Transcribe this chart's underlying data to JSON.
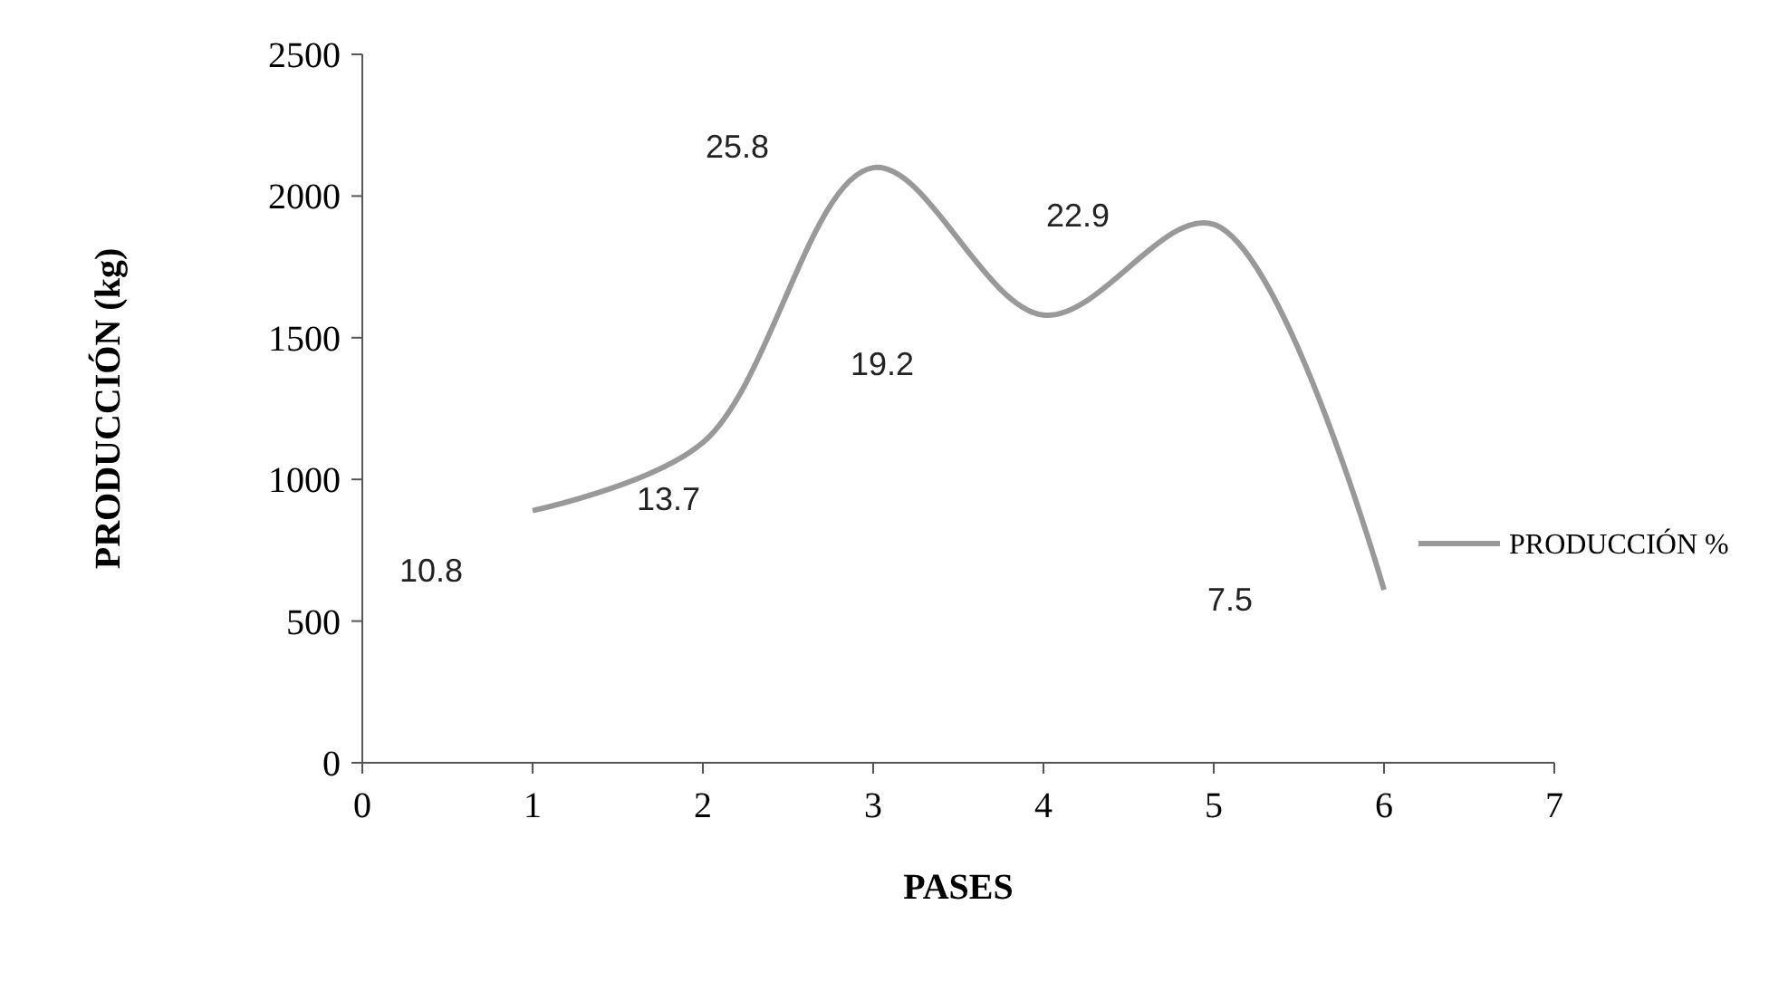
{
  "chart_data": {
    "type": "line",
    "xlabel": "PASES",
    "ylabel": "PRODUCCIÓN (kg)",
    "x": [
      1,
      2,
      3,
      4,
      5,
      6
    ],
    "series": [
      {
        "name": "PRODUCCIÓN %",
        "color": "#999999",
        "values": [
          890,
          1130,
          2100,
          1580,
          1900,
          610
        ]
      }
    ],
    "annotations": [
      "10.8",
      "13.7",
      "25.8",
      "19.2",
      "22.9",
      "7.5"
    ],
    "xlim": [
      0,
      7
    ],
    "xticks": [
      0,
      1,
      2,
      3,
      4,
      5,
      6,
      7
    ],
    "ylim": [
      0,
      2500
    ],
    "yticks": [
      0,
      500,
      1000,
      1500,
      2000,
      2500
    ],
    "grid": false,
    "legend": "right",
    "marker": "none",
    "line_style": "solid"
  }
}
